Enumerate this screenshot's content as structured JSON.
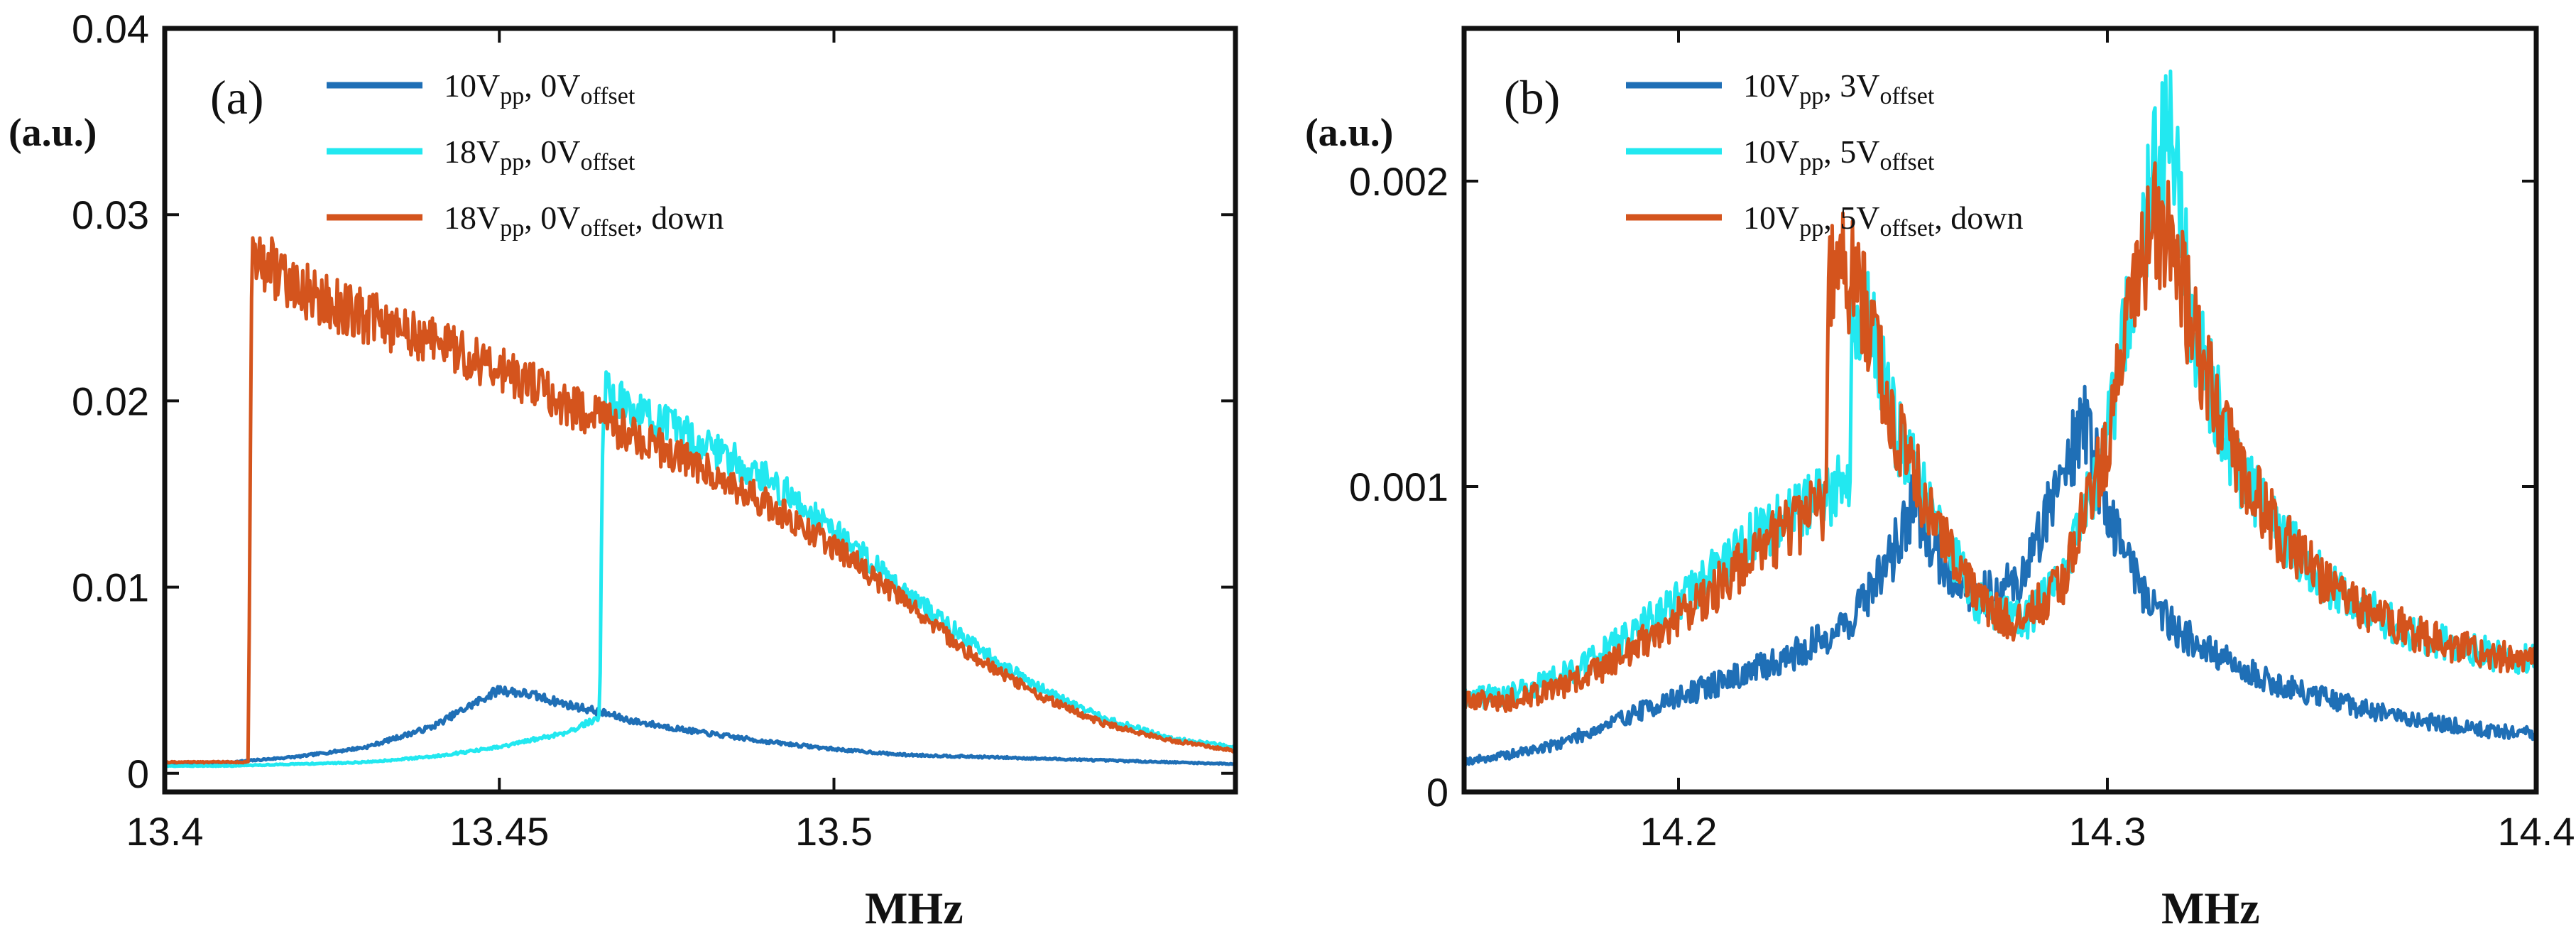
{
  "chart_data": [
    {
      "type": "line",
      "panel_label": "(a)",
      "xlabel": "MHz",
      "ylabel": "(a.u.)",
      "xlim": [
        13.4,
        13.56
      ],
      "ylim": [
        -0.001,
        0.04
      ],
      "xticks": [
        13.4,
        13.45,
        13.5
      ],
      "xtick_labels": [
        "13.4",
        "13.45",
        "13.5"
      ],
      "yticks": [
        0,
        0.01,
        0.02,
        0.03,
        0.04
      ],
      "ytick_labels": [
        "0",
        "0.01",
        "0.02",
        "0.03",
        "0.04"
      ],
      "legend_position": "top",
      "series": [
        {
          "name": "10Vpp, 0Voffset",
          "legend": {
            "a": "10V",
            "as": "pp",
            "b": ", 0V",
            "bs": "offset",
            "c": ""
          },
          "color": "#1f6fb6",
          "x": [
            13.4,
            13.41,
            13.42,
            13.43,
            13.44,
            13.445,
            13.45,
            13.455,
            13.46,
            13.465,
            13.47,
            13.48,
            13.49,
            13.5,
            13.51,
            13.52,
            13.53,
            13.54,
            13.55,
            13.56
          ],
          "y": [
            0.0005,
            0.0006,
            0.0009,
            0.0014,
            0.0025,
            0.0035,
            0.0045,
            0.0042,
            0.0037,
            0.0033,
            0.0028,
            0.0022,
            0.0017,
            0.0013,
            0.001,
            0.0009,
            0.0008,
            0.0007,
            0.0006,
            0.0005
          ]
        },
        {
          "name": "18Vpp, 0Voffset",
          "legend": {
            "a": "18V",
            "as": "pp",
            "b": ", 0V",
            "bs": "offset",
            "c": ""
          },
          "color": "#22e8f0",
          "x": [
            13.4,
            13.41,
            13.42,
            13.43,
            13.44,
            13.45,
            13.46,
            13.465,
            13.4655,
            13.47,
            13.48,
            13.49,
            13.5,
            13.51,
            13.52,
            13.53,
            13.54,
            13.55,
            13.56
          ],
          "y": [
            0.0004,
            0.0004,
            0.0005,
            0.0006,
            0.0009,
            0.0014,
            0.0022,
            0.003,
            0.0205,
            0.0195,
            0.0178,
            0.0158,
            0.0131,
            0.01,
            0.0071,
            0.0047,
            0.003,
            0.0019,
            0.0014
          ]
        },
        {
          "name": "18Vpp, 0Voffset, down",
          "legend": {
            "a": "18V",
            "as": "pp",
            "b": ", 0V",
            "bs": "offset",
            "c": ", down"
          },
          "color": "#d4541d",
          "x": [
            13.4,
            13.41,
            13.4125,
            13.413,
            13.42,
            13.43,
            13.44,
            13.45,
            13.46,
            13.465,
            13.47,
            13.48,
            13.49,
            13.5,
            13.51,
            13.52,
            13.53,
            13.54,
            13.55,
            13.56
          ],
          "y": [
            0.0006,
            0.0006,
            0.0006,
            0.028,
            0.026,
            0.0245,
            0.0232,
            0.0218,
            0.0198,
            0.019,
            0.0182,
            0.0165,
            0.0145,
            0.0122,
            0.0094,
            0.0065,
            0.0043,
            0.0027,
            0.0018,
            0.0012
          ]
        }
      ]
    },
    {
      "type": "line",
      "panel_label": "(b)",
      "xlabel": "MHz",
      "ylabel": "(a.u.)",
      "xlim": [
        14.15,
        14.4
      ],
      "ylim": [
        0,
        0.0025
      ],
      "xticks": [
        14.2,
        14.3,
        14.4
      ],
      "xtick_labels": [
        "14.2",
        "14.3",
        "14.4"
      ],
      "yticks": [
        0,
        0.001,
        0.002
      ],
      "ytick_labels": [
        "0",
        "0.001",
        "0.002"
      ],
      "legend_position": "top",
      "series": [
        {
          "name": "10Vpp, 3Voffset",
          "legend": {
            "a": "10V",
            "as": "pp",
            "b": ", 3V",
            "bs": "offset",
            "c": ""
          },
          "color": "#1f6fb6",
          "x": [
            14.15,
            14.16,
            14.17,
            14.18,
            14.19,
            14.2,
            14.21,
            14.22,
            14.23,
            14.24,
            14.25,
            14.255,
            14.26,
            14.27,
            14.28,
            14.285,
            14.29,
            14.295,
            14.3,
            14.31,
            14.32,
            14.33,
            14.34,
            14.35,
            14.36,
            14.37,
            14.38,
            14.39,
            14.4
          ],
          "y": [
            0.0001,
            0.00012,
            0.00015,
            0.0002,
            0.00026,
            0.00031,
            0.00036,
            0.00041,
            0.00047,
            0.00056,
            0.00078,
            0.00096,
            0.00078,
            0.00064,
            0.00069,
            0.00088,
            0.00108,
            0.00122,
            0.00092,
            0.00062,
            0.00049,
            0.00041,
            0.00035,
            0.00031,
            0.00027,
            0.00024,
            0.00022,
            0.0002,
            0.00019
          ]
        },
        {
          "name": "10Vpp, 5Voffset",
          "legend": {
            "a": "10V",
            "as": "pp",
            "b": ", 5V",
            "bs": "offset",
            "c": ""
          },
          "color": "#22e8f0",
          "x": [
            14.15,
            14.16,
            14.17,
            14.18,
            14.19,
            14.2,
            14.21,
            14.22,
            14.23,
            14.24,
            14.2405,
            14.245,
            14.25,
            14.26,
            14.27,
            14.28,
            14.29,
            14.3,
            14.305,
            14.31,
            14.315,
            14.32,
            14.33,
            14.34,
            14.35,
            14.36,
            14.37,
            14.38,
            14.39,
            14.4
          ],
          "y": [
            0.0003,
            0.00032,
            0.00036,
            0.00043,
            0.00052,
            0.00062,
            0.00074,
            0.00086,
            0.00094,
            0.00102,
            0.00162,
            0.00152,
            0.00122,
            0.00087,
            0.00062,
            0.00055,
            0.0007,
            0.00115,
            0.00155,
            0.00195,
            0.00218,
            0.0015,
            0.00108,
            0.00085,
            0.0007,
            0.0006,
            0.00053,
            0.00048,
            0.00045,
            0.00043
          ]
        },
        {
          "name": "10Vpp, 5Voffset, down",
          "legend": {
            "a": "10V",
            "as": "pp",
            "b": ", 5V",
            "bs": "offset",
            "c": ", down"
          },
          "color": "#d4541d",
          "x": [
            14.15,
            14.16,
            14.17,
            14.18,
            14.19,
            14.2,
            14.21,
            14.22,
            14.23,
            14.2345,
            14.235,
            14.24,
            14.245,
            14.25,
            14.26,
            14.27,
            14.28,
            14.29,
            14.3,
            14.305,
            14.31,
            14.315,
            14.32,
            14.33,
            14.34,
            14.35,
            14.36,
            14.37,
            14.38,
            14.39,
            14.4
          ],
          "y": [
            0.0003,
            0.0003,
            0.00033,
            0.00039,
            0.00047,
            0.00057,
            0.00068,
            0.0008,
            0.0009,
            0.00094,
            0.00168,
            0.0017,
            0.00152,
            0.00122,
            0.00087,
            0.00062,
            0.00055,
            0.0007,
            0.00115,
            0.00152,
            0.00185,
            0.0018,
            0.0015,
            0.00108,
            0.00085,
            0.0007,
            0.0006,
            0.00053,
            0.00048,
            0.00045,
            0.00043
          ]
        }
      ]
    }
  ]
}
